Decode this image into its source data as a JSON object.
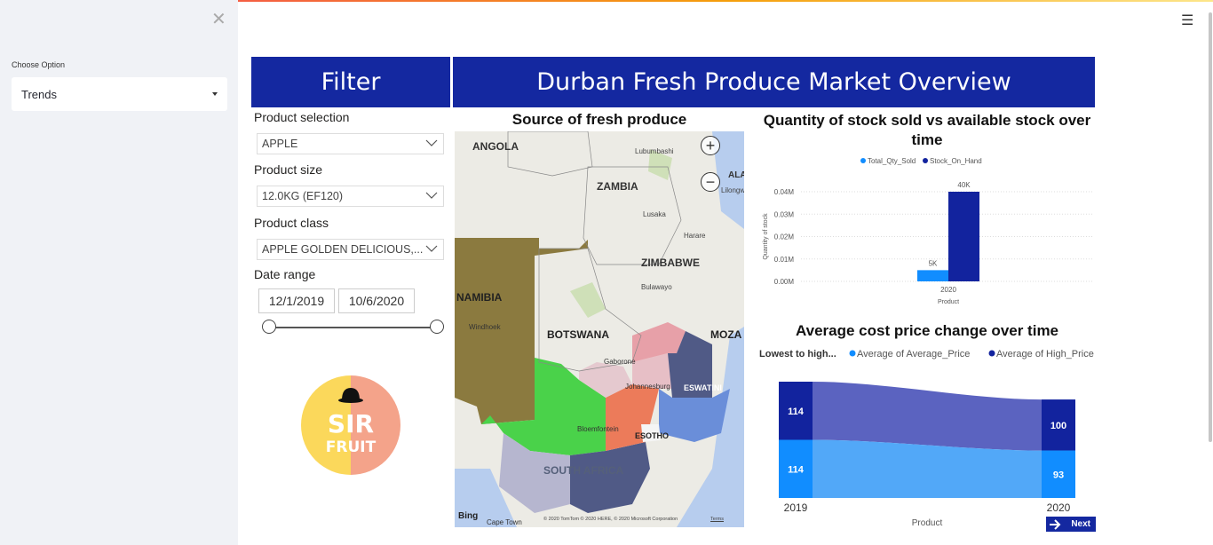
{
  "sidebar": {
    "choose_label": "Choose Option",
    "selected_option": "Trends"
  },
  "report": {
    "filter_title": "Filter",
    "main_title": "Durban Fresh Produce Market Overview",
    "filters": {
      "product_selection_label": "Product selection",
      "product_selection_value": "APPLE",
      "product_size_label": "Product size",
      "product_size_value": "12.0KG (EF120)",
      "product_class_label": "Product class",
      "product_class_value": "APPLE GOLDEN DELICIOUS,...",
      "date_range_label": "Date range",
      "date_start": "12/1/2019",
      "date_end": "10/6/2020"
    },
    "logo_text": [
      "SIR",
      "FRUIT"
    ],
    "next_label": "Next"
  },
  "map": {
    "title": "Source of fresh produce",
    "labels": {
      "angola": "ANGOLA",
      "zambia": "ZAMBIA",
      "lubumbashi": "Lubumbashi",
      "malawi": "ALAW",
      "lilongwe": "Lilongw",
      "lusaka": "Lusaka",
      "harare": "Harare",
      "zimbabwe": "ZIMBABWE",
      "bulawayo": "Bulawayo",
      "namibia": "NAMIBIA",
      "windhoek": "Windhoek",
      "botswana": "BOTSWANA",
      "mozambique": "MOZA",
      "gaborone": "Gaborone",
      "johannesburg": "Johannesburg",
      "eswatini": "ESWATINI",
      "bloemfontein": "Bloemfontein",
      "lesotho": "ESOTHO",
      "south_africa": "SOUTH AFRICA",
      "cape_town": "Cape Town",
      "bing": "Bing",
      "copyright": "© 2020 TomTom © 2020 HERE, © 2020 Microsoft Corporation",
      "terms": "Terms"
    }
  },
  "chart_data": [
    {
      "type": "bar",
      "title": "Quantity of stock sold vs available stock over time",
      "categories": [
        "2020"
      ],
      "series": [
        {
          "name": "Total_Qty_Sold",
          "values": [
            5000
          ],
          "color": "#118dff",
          "label": "5K"
        },
        {
          "name": "Stock_On_Hand",
          "values": [
            40000
          ],
          "color": "#12239e",
          "label": "40K"
        }
      ],
      "yticks": [
        "0.00M",
        "0.01M",
        "0.02M",
        "0.03M",
        "0.04M"
      ],
      "ylabel": "Quantity of stock",
      "xlabel": "Product",
      "ylim": [
        0,
        40000
      ]
    },
    {
      "type": "area",
      "title": "Average cost price change over time",
      "legend_title": "Lowest to high...",
      "categories": [
        "2019",
        "2020"
      ],
      "series": [
        {
          "name": "Average of Average_Price",
          "values": [
            114,
            93
          ],
          "color": "#118dff"
        },
        {
          "name": "Average of High_Price",
          "values": [
            114,
            100
          ],
          "color": "#12239e"
        }
      ],
      "xlabel": "Product"
    }
  ]
}
